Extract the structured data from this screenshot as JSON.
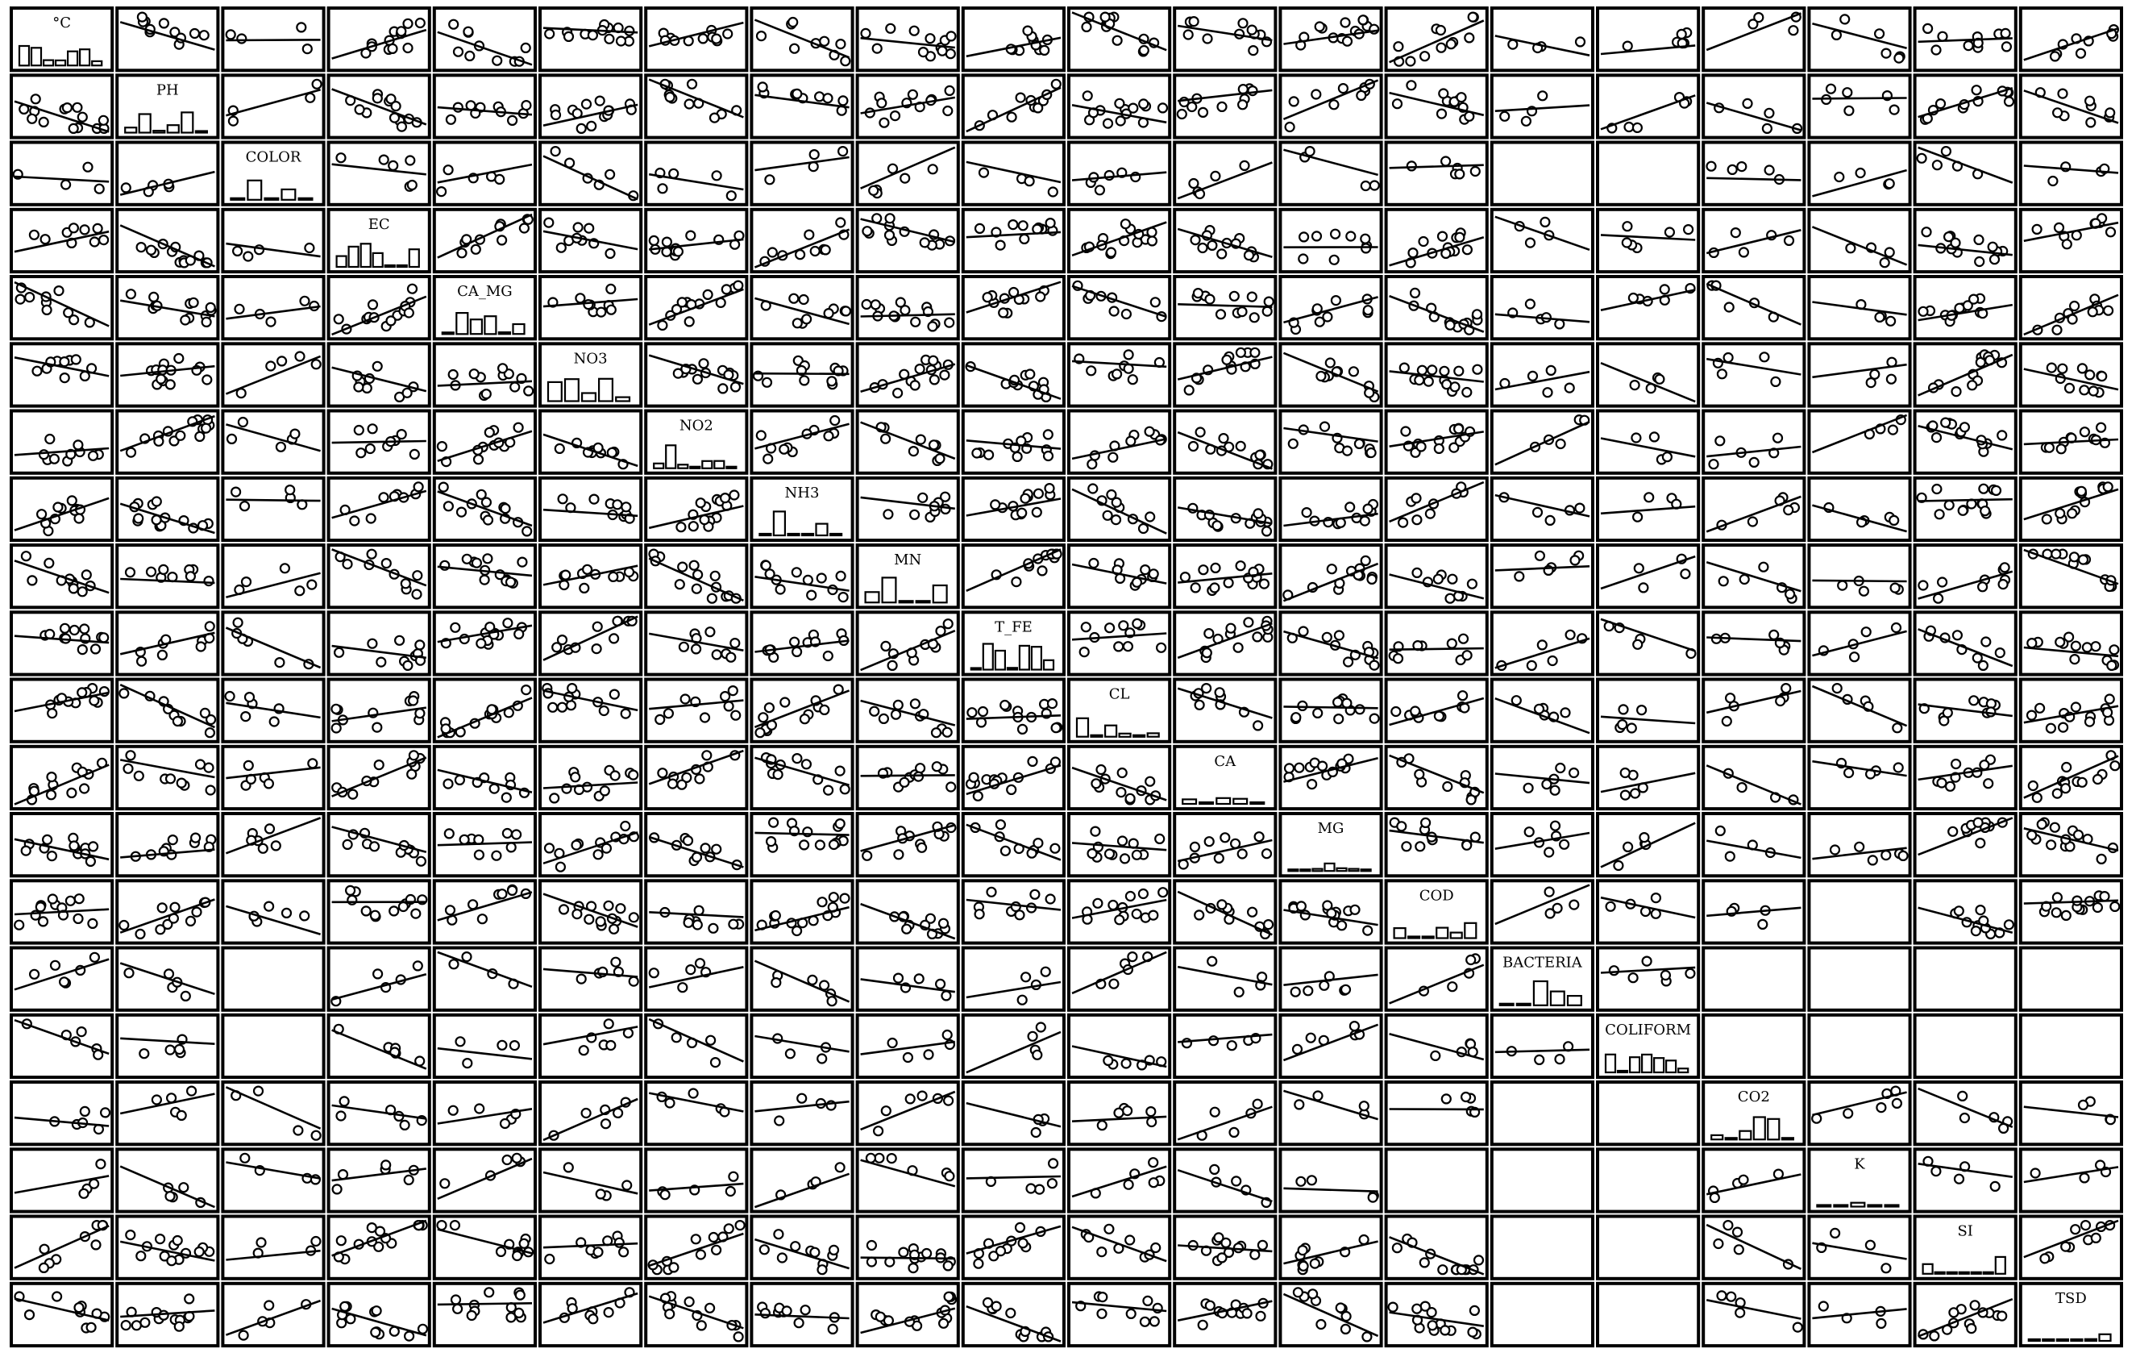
{
  "chart_data": {
    "type": "scatter-matrix",
    "variables": [
      "°C",
      "PH",
      "COLOR",
      "EC",
      "CA_MG",
      "NO3",
      "NO2",
      "NH3",
      "MN",
      "T_FE",
      "CL",
      "CA",
      "MG",
      "COD",
      "BACTERIA",
      "COLIFORM",
      "CO2",
      "K",
      "SI",
      "TSD"
    ],
    "diagonal": "histogram",
    "off_diagonal": "scatter with linear fit line",
    "axes_shown": false,
    "grid": false,
    "legend": "none",
    "notes": "Many plot cells in rows/columns for COLOR, BACTERIA, COLIFORM, CO2, K are empty or sparse in the original image."
  }
}
